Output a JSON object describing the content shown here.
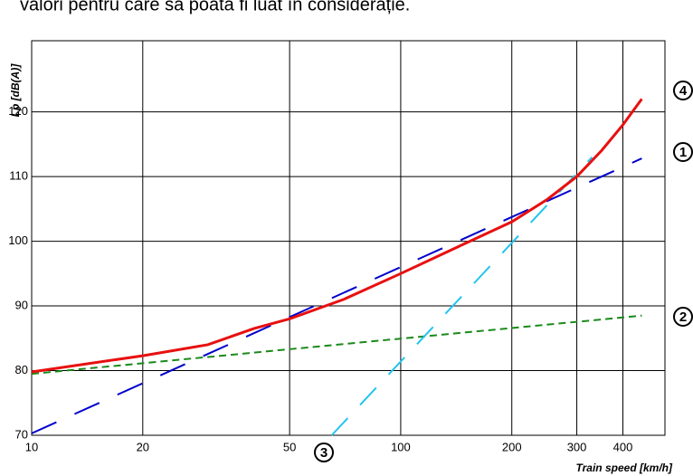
{
  "chart_data": {
    "type": "line",
    "title": "valori pentru care să poată fi luat în considerație.",
    "x_label": "Train speed [km/h]",
    "y_label": "Lp [dB(A)]",
    "x_log": true,
    "grid": true,
    "xlim": [
      10,
      520
    ],
    "ylim": [
      70,
      131
    ],
    "xticks": [
      10,
      20,
      50,
      100,
      200,
      300,
      400
    ],
    "yticks": [
      70,
      80,
      90,
      100,
      110,
      120
    ],
    "series": [
      {
        "name": "1",
        "color": "#0000cc",
        "dash": "long",
        "x": [
          10,
          450
        ],
        "values": [
          70.3,
          112.8
        ]
      },
      {
        "name": "2",
        "color": "#1a8a1a",
        "dash": "short",
        "x": [
          10,
          450
        ],
        "values": [
          79.5,
          88.5
        ]
      },
      {
        "name": "3",
        "color": "#22c4ee",
        "dash": "medium",
        "x": [
          65,
          330
        ],
        "values": [
          70,
          113
        ]
      },
      {
        "name": "4",
        "color": "#e81010",
        "dash": "solid",
        "x": [
          10,
          20,
          30,
          40,
          50,
          70,
          100,
          150,
          200,
          250,
          300,
          350,
          400,
          450
        ],
        "values": [
          79.8,
          82.3,
          84,
          86.5,
          88,
          91,
          95,
          99.7,
          103,
          106.5,
          110,
          114,
          118,
          122
        ]
      }
    ]
  }
}
